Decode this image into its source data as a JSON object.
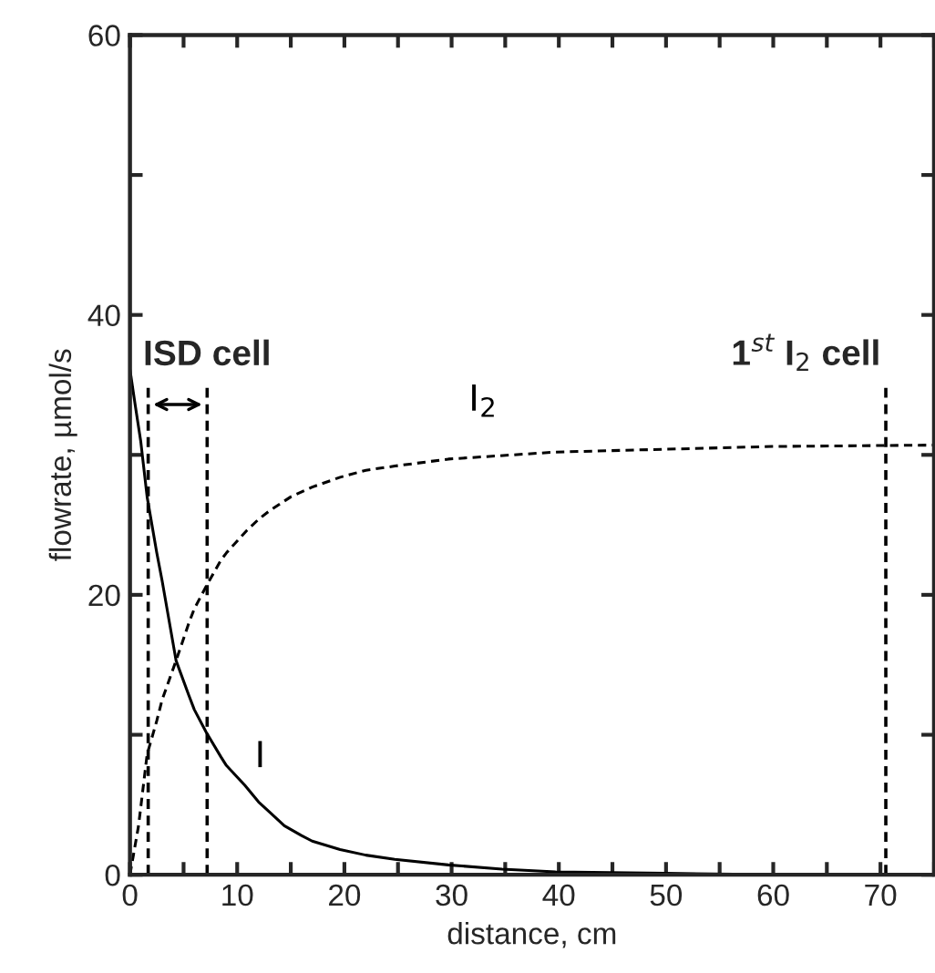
{
  "chart_data": {
    "type": "line",
    "xlabel": "distance, cm",
    "ylabel": "flowrate, µmol/s",
    "xlim": [
      0,
      75
    ],
    "ylim": [
      0,
      60
    ],
    "xticks": [
      0,
      {
        "value": 5,
        "label": null
      },
      10,
      {
        "value": 15,
        "label": null
      },
      20,
      {
        "value": 25,
        "label": null
      },
      30,
      {
        "value": 35,
        "label": null
      },
      40,
      {
        "value": 45,
        "label": null
      },
      50,
      {
        "value": 55,
        "label": null
      },
      60,
      {
        "value": 65,
        "label": null
      },
      70,
      {
        "value": 75,
        "label": null
      }
    ],
    "yticks": [
      0,
      {
        "value": 10,
        "label": null
      },
      20,
      {
        "value": 30,
        "label": null
      },
      40,
      {
        "value": 50,
        "label": null
      },
      60
    ],
    "grid": false,
    "marker": "none",
    "series": [
      {
        "name": "I",
        "color": "#000000",
        "line_style": "solid",
        "x": [
          0,
          0.5,
          1,
          1.6,
          2.5,
          3,
          4.3,
          5.5,
          6,
          7.1,
          8.5,
          9,
          10.7,
          12,
          13,
          14.4,
          16,
          17,
          19.6,
          22,
          24.7,
          29.7,
          34.7,
          39.7,
          50,
          60,
          75
        ],
        "values": [
          36.1,
          33.5,
          31,
          27,
          23,
          21,
          15.3,
          12.8,
          11.8,
          10.2,
          8.4,
          7.8,
          6.4,
          5.2,
          4.5,
          3.5,
          2.8,
          2.4,
          1.8,
          1.4,
          1.1,
          0.7,
          0.4,
          0.2,
          0.1,
          0,
          0
        ]
      },
      {
        "name": "I$_{2}$",
        "color": "#000000",
        "line_style": "dashed",
        "x": [
          0,
          0.3,
          0.8,
          1.6,
          2.5,
          3,
          4.3,
          5.5,
          6,
          7.1,
          8.5,
          9,
          10.9,
          12,
          13,
          15,
          17,
          19.6,
          22,
          24.7,
          29.7,
          39.7,
          49.8,
          59.9,
          75
        ],
        "values": [
          0,
          1.3,
          3.5,
          8.6,
          11,
          12.5,
          15.3,
          18,
          19,
          20.6,
          22.5,
          23,
          24.6,
          25.4,
          26,
          27,
          27.7,
          28.4,
          28.9,
          29.2,
          29.7,
          30.2,
          30.4,
          30.6,
          30.7
        ]
      }
    ],
    "ref_lines": [
      {
        "axis": "x",
        "value": 1.7,
        "color": "#000000",
        "line_style": "dashed",
        "label": "ISD cell"
      },
      {
        "axis": "x",
        "value": 7.2,
        "color": "#000000",
        "line_style": "dashed"
      },
      {
        "axis": "x",
        "value": 70.5,
        "color": "#000000",
        "line_style": "dashed",
        "label": "1$^{st}$ I$_{2}$ cell"
      }
    ]
  }
}
